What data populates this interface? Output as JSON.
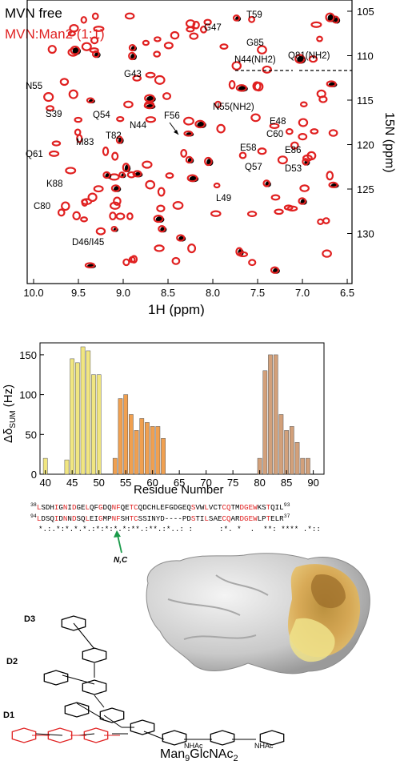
{
  "hsqc": {
    "legend": [
      {
        "label": "MVN free",
        "color": "#000000"
      },
      {
        "label": "MVN:Man2 (1:1)",
        "color": "#e02020"
      }
    ],
    "xlabel": "1H (ppm)",
    "ylabel": "15N (ppm)",
    "x_ticks": [
      "10.0",
      "9.5",
      "9.0",
      "8.5",
      "8.0",
      "7.5",
      "7.0",
      "6.5"
    ],
    "y_ticks": [
      "105",
      "110",
      "115",
      "120",
      "125",
      "130"
    ],
    "peak_labels": [
      "T59",
      "G47",
      "G85",
      "N44(NH2)",
      "Q81(NH2)",
      "N55",
      "G43",
      "S39",
      "Q54",
      "F56",
      "N44",
      "N55(NH2)",
      "E48",
      "C60",
      "T82",
      "M83",
      "Q61",
      "E58",
      "E86",
      "Q57",
      "D53",
      "K88",
      "C80",
      "L49",
      "D46/I45"
    ]
  },
  "chart_data": {
    "type": "bar",
    "xlabel": "Residue Number",
    "ylabel": "Δδ SUM (Hz)",
    "xlim": [
      39,
      92
    ],
    "ylim": [
      0,
      165
    ],
    "x_ticks": [
      "40",
      "45",
      "50",
      "55",
      "60",
      "65",
      "70",
      "75",
      "80",
      "85",
      "90"
    ],
    "y_ticks": [
      "0",
      "50",
      "100",
      "150"
    ],
    "series": [
      {
        "color": "#f1e680",
        "x": [
          40,
          44,
          45,
          46,
          47,
          48,
          49,
          50
        ],
        "values": [
          20,
          18,
          145,
          140,
          160,
          155,
          125,
          125
        ]
      },
      {
        "color": "#f0a050",
        "x": [
          53,
          54,
          55,
          56,
          57,
          58,
          59,
          60,
          61,
          62
        ],
        "values": [
          20,
          95,
          100,
          75,
          55,
          70,
          65,
          60,
          60,
          45
        ]
      },
      {
        "color": "#d2a07a",
        "x": [
          80,
          81,
          82,
          83,
          84,
          85,
          86,
          87,
          88,
          89
        ],
        "values": [
          20,
          130,
          150,
          150,
          75,
          55,
          60,
          40,
          20,
          20
        ]
      }
    ]
  },
  "sequence": {
    "row1": {
      "start": "38",
      "end": "93",
      "text": "LSDHIGNIDGELQFGDQNFQETCQDCHLEFGDGEQSVWLVCTCQTMDGEWKSTQIL"
    },
    "row2": {
      "start": "94",
      "end": "37",
      "text": "LDSQIDNNDSQLEIGMPNFSHTCSSINYD----PDSTILSAECQARDGEWLPTELR"
    },
    "conservation": "*.:.*:*.*.*.:*:*:*.*:**.:**.:*..: :      :*. *  .  **: **** .*::",
    "nc_label": "N,C"
  },
  "glycan": {
    "title": "Man9GlcNAc2",
    "arm_labels": [
      "D3",
      "D2",
      "D1"
    ],
    "nac_labels": [
      "NHAc",
      "NHAc"
    ]
  }
}
